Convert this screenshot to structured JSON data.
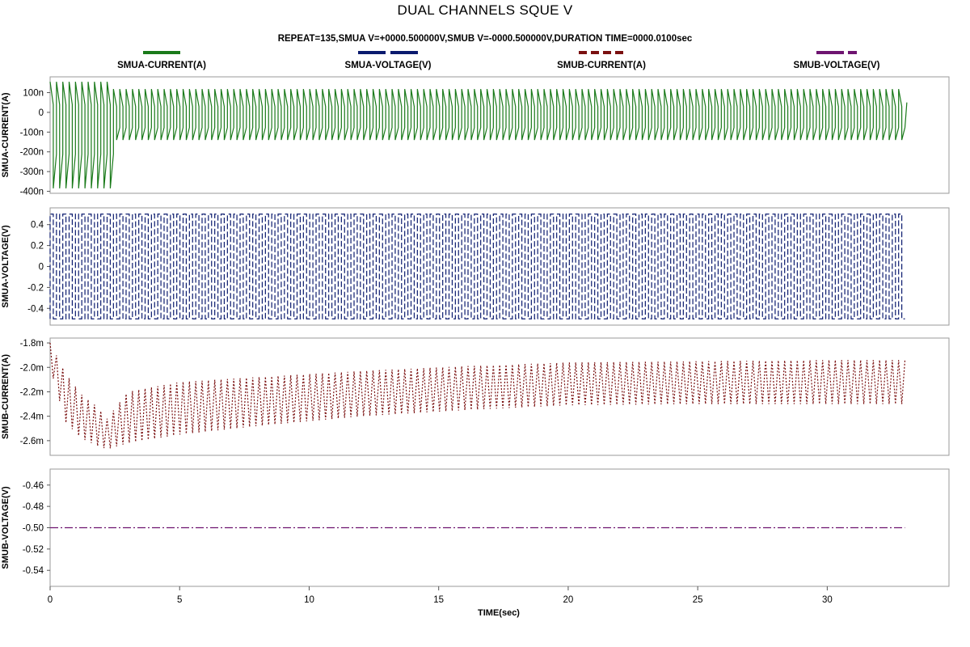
{
  "chart_data": {
    "type": "line",
    "title": "DUAL CHANNELS SQUE V",
    "subtitle": "REPEAT=135,SMUA V=+0000.500000V,SMUB V=-0000.500000V,DURATION TIME=0000.0100sec",
    "xlabel": "TIME(sec)",
    "xlim": [
      0,
      34.7
    ],
    "x_ticks": [
      0,
      5,
      10,
      15,
      20,
      25,
      30
    ],
    "x_tick_labels": [
      "0",
      "5",
      "10",
      "15",
      "20",
      "25",
      "30"
    ],
    "legend": [
      {
        "label": "SMUA-CURRENT(A)",
        "color": "#1a7a1a",
        "style": "solid"
      },
      {
        "label": "SMUA-VOLTAGE(V)",
        "color": "#0a1a6e",
        "style": "dashed"
      },
      {
        "label": "SMUB-CURRENT(A)",
        "color": "#7a1010",
        "style": "dotted"
      },
      {
        "label": "SMUB-VOLTAGE(V)",
        "color": "#6e1470",
        "style": "dash-dot"
      }
    ],
    "panels": [
      {
        "name": "SMUA-CURRENT(A)",
        "ylabel": "SMUA-CURRENT(A)",
        "ylim": [
          -4.1e-07,
          1.8e-07
        ],
        "y_ticks": [
          1e-07,
          0,
          -1e-07,
          -2e-07,
          -3e-07,
          -4e-07
        ],
        "y_tick_labels": [
          "100n",
          "0",
          "-100n",
          "-200n",
          "-300n",
          "-400n"
        ],
        "color": "#1a7a1a",
        "dash": "",
        "x_range": [
          0,
          33.0
        ],
        "periods": 135,
        "signal": "square-current",
        "envelope": {
          "early_high": 1.55e-07,
          "early_low": -3.85e-07,
          "early_until": 2.25,
          "late_high": 1.18e-07,
          "late_low": -1.4e-07
        }
      },
      {
        "name": "SMUA-VOLTAGE(V)",
        "ylabel": "SMUA-VOLTAGE(V)",
        "ylim": [
          -0.56,
          0.56
        ],
        "y_ticks": [
          0.4,
          0.2,
          0,
          -0.2,
          -0.4
        ],
        "y_tick_labels": [
          "0.4",
          "0.2",
          "0",
          "-0.2",
          "-0.4"
        ],
        "color": "#0a1a6e",
        "dash": "7,3",
        "x_range": [
          0,
          33.0
        ],
        "periods": 135,
        "signal": "square-voltage",
        "envelope": {
          "high": 0.5,
          "low": -0.5
        }
      },
      {
        "name": "SMUB-CURRENT(A)",
        "ylabel": "SMUB-CURRENT(A)",
        "ylim": [
          -0.00272,
          -0.00176
        ],
        "y_ticks": [
          -0.0018,
          -0.002,
          -0.0022,
          -0.0024,
          -0.0026
        ],
        "y_tick_labels": [
          "-1.8m",
          "-2.0m",
          "-2.2m",
          "-2.4m",
          "-2.6m"
        ],
        "color": "#7a1010",
        "dash": "2,2",
        "x_range": [
          0,
          33.0
        ],
        "periods": 135,
        "signal": "drift-current",
        "envelope_points": {
          "x": [
            0,
            0.6,
            1.2,
            1.8,
            2.2,
            3,
            5,
            8,
            12,
            16,
            20,
            25,
            30,
            33
          ],
          "top": [
            -0.0018,
            -0.00205,
            -0.00222,
            -0.00232,
            -0.00242,
            -0.0022,
            -0.00212,
            -0.00208,
            -0.00203,
            -0.00199,
            -0.00196,
            -0.00195,
            -0.00194,
            -0.00194
          ],
          "bot": [
            -0.002,
            -0.00245,
            -0.00258,
            -0.00264,
            -0.00267,
            -0.00262,
            -0.00255,
            -0.00248,
            -0.0024,
            -0.00235,
            -0.00231,
            -0.0023,
            -0.0023,
            -0.0023
          ]
        }
      },
      {
        "name": "SMUB-VOLTAGE(V)",
        "ylabel": "SMUB-VOLTAGE(V)",
        "ylim": [
          -0.555,
          -0.445
        ],
        "y_ticks": [
          -0.46,
          -0.48,
          -0.5,
          -0.52,
          -0.54
        ],
        "y_tick_labels": [
          "-0.46",
          "-0.48",
          "-0.50",
          "-0.52",
          "-0.54"
        ],
        "color": "#6e1470",
        "dash": "10,3,2,3",
        "x_range": [
          0,
          33.0
        ],
        "signal": "constant",
        "value": -0.5
      }
    ]
  }
}
